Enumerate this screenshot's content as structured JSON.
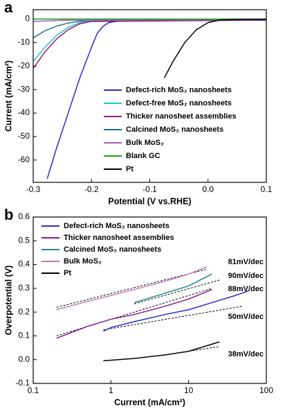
{
  "chart_data": [
    {
      "type": "line",
      "panel_label": "a",
      "xlabel": "Potential (V vs.RHE)",
      "ylabel": "Current (mA/cm²)",
      "xlim": [
        -0.3,
        0.1
      ],
      "xticks": [
        -0.3,
        -0.2,
        -0.1,
        {
          "value": 0,
          "label": "0.0"
        },
        0.1
      ],
      "ylim": [
        -69.5,
        4
      ],
      "yticks": [
        0,
        -10,
        -20,
        -30,
        -40,
        -50,
        -60
      ],
      "legend_loc": "lower right",
      "series": [
        {
          "name": "Defect-rich MoS₂ nanosheets",
          "color": "#2b2bc8",
          "x": [
            -0.276,
            -0.26,
            -0.24,
            -0.22,
            -0.2,
            -0.19,
            -0.18,
            -0.17,
            -0.15,
            0.1
          ],
          "values": [
            -68,
            -55,
            -40,
            -25,
            -12,
            -6,
            -3,
            -1.5,
            -0.7,
            -0.5
          ]
        },
        {
          "name": "Defect-free MoS₂ nanosheets",
          "color": "#22c4c8",
          "x": [
            -0.3,
            -0.28,
            -0.26,
            -0.24,
            -0.22,
            -0.2,
            0.1
          ],
          "values": [
            -18,
            -12,
            -7,
            -3.5,
            -1.5,
            -0.7,
            -0.3
          ]
        },
        {
          "name": "Thicker nanosheet assemblies",
          "color": "#9a1a7a",
          "x": [
            -0.3,
            -0.28,
            -0.26,
            -0.24,
            -0.22,
            -0.2,
            0.1
          ],
          "values": [
            -21,
            -14,
            -8.5,
            -4.5,
            -2,
            -1,
            -0.4
          ]
        },
        {
          "name": "Calcined  MoS₂ nanosheets",
          "color": "#206a8a",
          "x": [
            -0.3,
            -0.28,
            -0.26,
            -0.24,
            -0.22,
            -0.2,
            0.1
          ],
          "values": [
            -8,
            -5,
            -3,
            -1.7,
            -0.9,
            -0.5,
            -0.2
          ]
        },
        {
          "name": "Bulk MoS₂",
          "color": "#a060c0",
          "x": [
            -0.3,
            -0.25,
            0.1
          ],
          "values": [
            -1,
            -0.5,
            -0.1
          ]
        },
        {
          "name": "Blank GC",
          "color": "#10a010",
          "x": [
            -0.3,
            0.1
          ],
          "values": [
            0,
            0
          ]
        },
        {
          "name": "Pt",
          "color": "#000000",
          "x": [
            -0.075,
            -0.06,
            -0.04,
            -0.02,
            0,
            0.02,
            0.05,
            0.1
          ],
          "values": [
            -25,
            -18,
            -10,
            -4.5,
            -1.5,
            -0.4,
            -0.1,
            0
          ]
        }
      ]
    },
    {
      "type": "line",
      "panel_label": "b",
      "xlabel": "Current (mA/cm²)",
      "ylabel": "Overpotential (V)",
      "xscale": "log",
      "xlim": [
        0.1,
        100
      ],
      "xticks": [
        0.1,
        1,
        10,
        100
      ],
      "ylim": [
        -0.1,
        0.6
      ],
      "yticks": [
        -0.1,
        {
          "value": 0,
          "label": "0.0"
        },
        0.1,
        0.2,
        0.3,
        0.4,
        0.5,
        0.6
      ],
      "legend_loc": "upper left",
      "series": [
        {
          "name": "Defect-rich MoS₂ nanosheets",
          "color": "#2b2bc8",
          "x": [
            0.8,
            1,
            2,
            5,
            10,
            20,
            40,
            60
          ],
          "values": [
            0.12,
            0.135,
            0.16,
            0.19,
            0.21,
            0.24,
            0.27,
            0.29
          ]
        },
        {
          "name": "Thicker nanosheet assemblies",
          "color": "#8b1a8b",
          "x": [
            0.2,
            0.5,
            1,
            2,
            5,
            10,
            20
          ],
          "values": [
            0.09,
            0.14,
            0.17,
            0.19,
            0.225,
            0.255,
            0.295
          ]
        },
        {
          "name": "Calcined  MoS₂ nanosheets",
          "color": "#208888",
          "x": [
            2,
            5,
            10,
            20
          ],
          "values": [
            0.24,
            0.28,
            0.31,
            0.36
          ]
        },
        {
          "name": "Bulk MoS₂",
          "color": "#c87aa8",
          "x": [
            0.2,
            0.5,
            1,
            2,
            5,
            10,
            17
          ],
          "values": [
            0.21,
            0.245,
            0.27,
            0.295,
            0.33,
            0.36,
            0.39
          ]
        },
        {
          "name": "Pt",
          "color": "#000000",
          "x": [
            0.8,
            2,
            5,
            10,
            25
          ],
          "values": [
            -0.005,
            0.005,
            0.02,
            0.035,
            0.075
          ]
        }
      ],
      "fits": [
        {
          "label": "81mV/dec",
          "x": [
            0.2,
            17
          ],
          "values": [
            0.22,
            0.38
          ]
        },
        {
          "label": "90mV/dec",
          "x": [
            2,
            25
          ],
          "values": [
            0.235,
            0.335
          ]
        },
        {
          "label": "88mV/dec",
          "x": [
            0.2,
            20
          ],
          "values": [
            0.1,
            0.3
          ]
        },
        {
          "label": "50mV/dec",
          "x": [
            0.8,
            50
          ],
          "values": [
            0.125,
            0.225
          ]
        },
        {
          "label": "38mV/dec",
          "x": [
            5,
            25
          ],
          "values": [
            0.02,
            0.055
          ]
        }
      ]
    }
  ]
}
